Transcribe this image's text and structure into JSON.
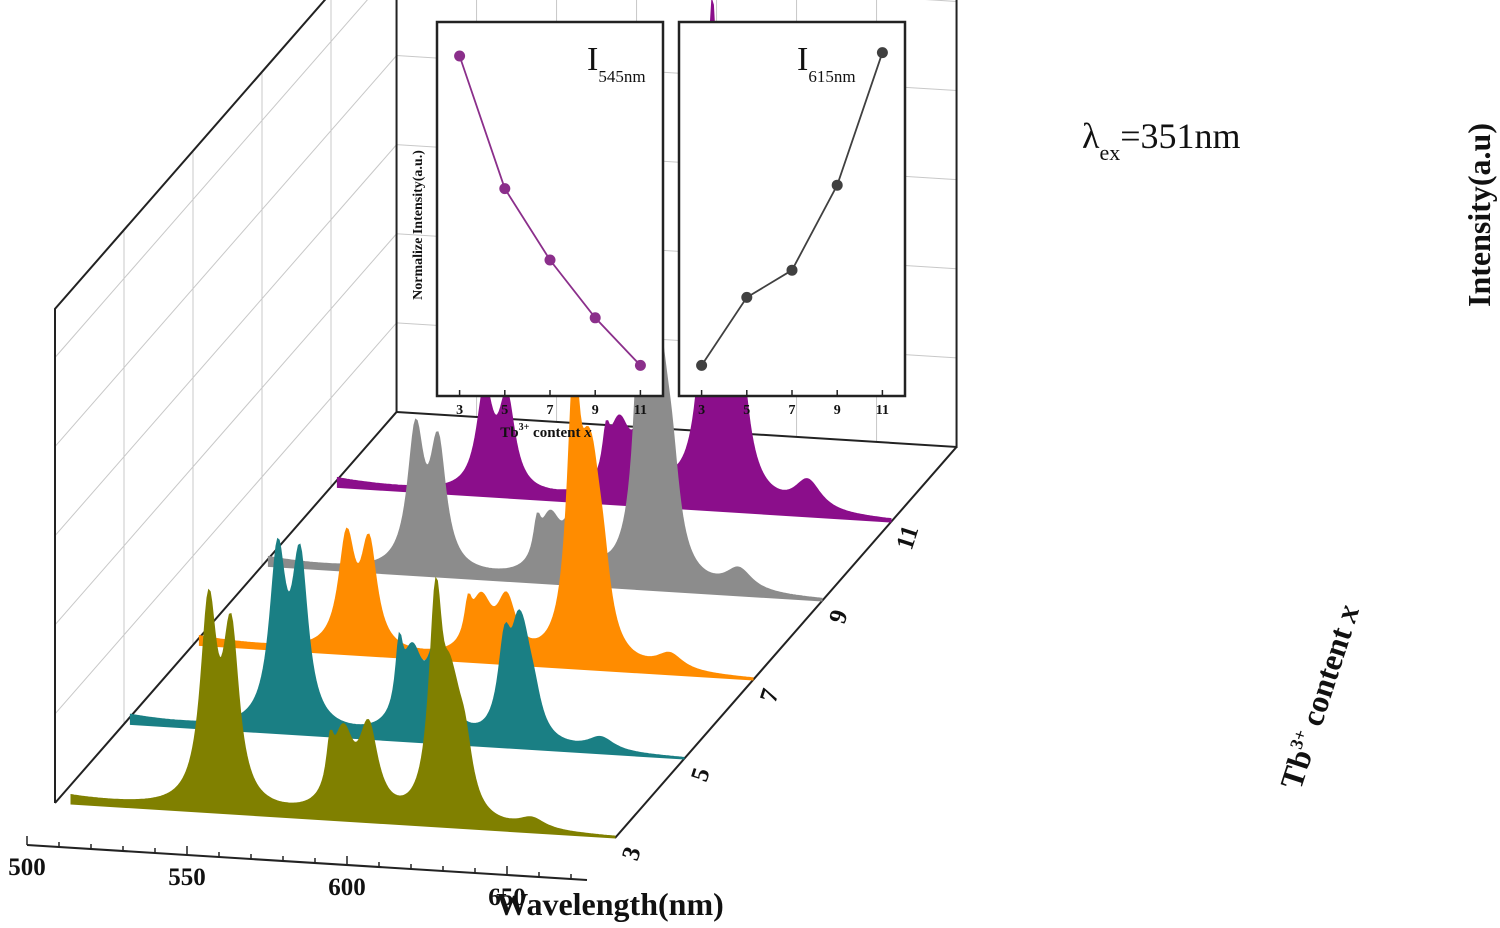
{
  "chart_data": {
    "type": "area",
    "xlabel": "Wavelength(nm)",
    "zlabel": "Intensity(a.u)",
    "depth_label": {
      "main": "Tb",
      "sup": "3+",
      "rest": " content ",
      "var": "x"
    },
    "xlim": [
      500,
      675
    ],
    "x_ticks": [
      "500",
      "550",
      "600",
      "650"
    ],
    "depth_ticks": [
      "3",
      "5",
      "7",
      "9",
      "11"
    ],
    "annotation": {
      "prefix": "λ",
      "sub": "ex",
      "suffix": "=351nm"
    },
    "peaks": [
      {
        "center": 548,
        "width": 3
      },
      {
        "center": 555,
        "width": 3
      },
      {
        "center": 586,
        "width": 1.3
      },
      {
        "center": 590,
        "width": 4
      },
      {
        "center": 598,
        "width": 3.5
      },
      {
        "center": 619,
        "width": 2.5
      },
      {
        "center": 623,
        "width": 2.5
      },
      {
        "center": 625,
        "width": 3
      },
      {
        "center": 628,
        "width": 3
      },
      {
        "center": 649,
        "width": 5
      }
    ],
    "series": [
      {
        "content": "3",
        "color": "#808000",
        "baseline": 505,
        "heights": [
          0.72,
          0.62,
          0.15,
          0.28,
          0.3,
          0.78,
          0.22,
          0.2,
          0.22,
          0.04
        ]
      },
      {
        "content": "5",
        "color": "#1a7f84",
        "baseline": 502,
        "heights": [
          0.62,
          0.6,
          0.22,
          0.28,
          0.33,
          0.32,
          0.22,
          0.22,
          0.12,
          0.05
        ]
      },
      {
        "content": "7",
        "color": "#ff8c00",
        "baseline": 502,
        "heights": [
          0.4,
          0.38,
          0.12,
          0.2,
          0.2,
          0.95,
          0.28,
          0.4,
          0.25,
          0.06
        ]
      },
      {
        "content": "9",
        "color": "#8c8c8c",
        "baseline": 502,
        "heights": [
          0.5,
          0.45,
          0.12,
          0.2,
          0.25,
          1.18,
          0.3,
          0.42,
          0.3,
          0.08
        ]
      },
      {
        "content": "11",
        "color": "#8b0e8b",
        "baseline": 502,
        "heights": [
          0.36,
          0.33,
          0.14,
          0.25,
          0.28,
          1.62,
          0.45,
          0.55,
          0.2,
          0.11
        ]
      }
    ],
    "insets": [
      {
        "title": "I",
        "subscript": "545nm",
        "x": [
          3,
          5,
          7,
          9,
          11
        ],
        "y": [
          1.0,
          0.61,
          0.4,
          0.23,
          0.09
        ],
        "xlim": [
          2,
          12
        ],
        "ylim": [
          0,
          1.1
        ],
        "color": "#8b2f8b"
      },
      {
        "title": "I",
        "subscript": "615nm",
        "x": [
          3,
          5,
          7,
          9,
          11
        ],
        "y": [
          0.09,
          0.29,
          0.37,
          0.62,
          1.01
        ],
        "xlim": [
          2,
          12
        ],
        "ylim": [
          0,
          1.1
        ],
        "color": "#404040"
      }
    ],
    "inset_ylabel": "Normalize Intensity(a.u.)",
    "inset_xlabel": {
      "main": "Tb",
      "sup": "3+",
      "rest": " content ",
      "var": "x"
    },
    "inset_ticks": [
      "3",
      "5",
      "7",
      "9",
      "11"
    ]
  }
}
